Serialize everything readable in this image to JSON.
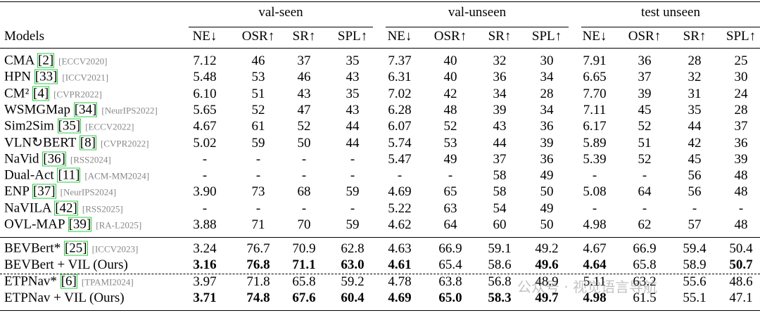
{
  "table": {
    "header": {
      "models": "Models",
      "groups": [
        {
          "label": "val-seen",
          "columns": [
            "NE↓",
            "OSR↑",
            "SR↑",
            "SPL↑"
          ]
        },
        {
          "label": "val-unseen",
          "columns": [
            "NE↓",
            "OSR↑",
            "SR↑",
            "SPL↑"
          ]
        },
        {
          "label": "test unseen",
          "columns": [
            "NE↓",
            "OSR↑",
            "SR↑",
            "SPL↑"
          ]
        }
      ]
    },
    "rows": [
      {
        "name": "CMA",
        "cite": "[2]",
        "venue": "[ECCV2020]",
        "values": [
          "7.12",
          "46",
          "37",
          "35",
          "7.37",
          "40",
          "32",
          "30",
          "7.91",
          "36",
          "28",
          "25"
        ],
        "bold": []
      },
      {
        "name": "HPN",
        "cite": "[33]",
        "venue": "[ICCV2021]",
        "values": [
          "5.48",
          "53",
          "46",
          "43",
          "6.31",
          "40",
          "36",
          "34",
          "6.65",
          "37",
          "32",
          "30"
        ],
        "bold": []
      },
      {
        "name": "CM²",
        "cite": "[4]",
        "venue": "[CVPR2022]",
        "values": [
          "6.10",
          "51",
          "43",
          "35",
          "7.02",
          "42",
          "34",
          "28",
          "7.70",
          "39",
          "31",
          "24"
        ],
        "bold": []
      },
      {
        "name": "WSMGMap",
        "cite": "[34]",
        "venue": "[NeurIPS2022]",
        "values": [
          "5.65",
          "52",
          "47",
          "43",
          "6.28",
          "48",
          "39",
          "34",
          "7.11",
          "45",
          "35",
          "28"
        ],
        "bold": []
      },
      {
        "name": "Sim2Sim",
        "cite": "[35]",
        "venue": "[ECCV2022]",
        "values": [
          "4.67",
          "61",
          "52",
          "44",
          "6.07",
          "52",
          "43",
          "36",
          "6.17",
          "52",
          "44",
          "37"
        ],
        "bold": []
      },
      {
        "name": "VLN↻BERT",
        "cite": "[8]",
        "venue": "[CVPR2022]",
        "values": [
          "5.02",
          "59",
          "50",
          "44",
          "5.74",
          "53",
          "44",
          "39",
          "5.89",
          "51",
          "42",
          "36"
        ],
        "bold": []
      },
      {
        "name": "NaVid",
        "cite": "[36]",
        "venue": "[RSS2024]",
        "values": [
          "-",
          "-",
          "-",
          "-",
          "5.47",
          "49",
          "37",
          "36",
          "5.39",
          "52",
          "45",
          "39"
        ],
        "bold": []
      },
      {
        "name": "Dual-Act",
        "cite": "[11]",
        "venue": "[ACM-MM2024]",
        "values": [
          "-",
          "-",
          "-",
          "-",
          "-",
          "-",
          "58",
          "49",
          "-",
          "-",
          "56",
          "48"
        ],
        "bold": []
      },
      {
        "name": "ENP",
        "cite": "[37]",
        "venue": "[NeurIPS2024]",
        "values": [
          "3.90",
          "73",
          "68",
          "59",
          "4.69",
          "65",
          "58",
          "50",
          "5.08",
          "64",
          "56",
          "48"
        ],
        "bold": []
      },
      {
        "name": "NaVILA",
        "cite": "[42]",
        "venue": "[RSS2025]",
        "values": [
          "-",
          "-",
          "-",
          "-",
          "5.22",
          "63",
          "54",
          "49",
          "-",
          "-",
          "-",
          "-"
        ],
        "bold": []
      },
      {
        "name": "OVL-MAP",
        "cite": "[39]",
        "venue": "[RA-L2025]",
        "values": [
          "3.88",
          "71",
          "70",
          "59",
          "4.62",
          "64",
          "60",
          "50",
          "4.98",
          "62",
          "57",
          "48"
        ],
        "bold": []
      },
      {
        "name": "BEVBert*",
        "cite": "[25]",
        "venue": "[ICCV2023]",
        "values": [
          "3.24",
          "76.7",
          "70.9",
          "62.8",
          "4.63",
          "66.9",
          "59.1",
          "49.2",
          "4.67",
          "66.9",
          "59.4",
          "50.4"
        ],
        "bold": []
      },
      {
        "name": "BEVBert + VIL (Ours)",
        "values": [
          "3.16",
          "76.8",
          "71.1",
          "63.0",
          "4.61",
          "65.4",
          "58.6",
          "49.6",
          "4.64",
          "65.8",
          "58.9",
          "50.7"
        ],
        "bold": [
          0,
          1,
          2,
          3,
          4,
          7,
          8,
          11
        ]
      },
      {
        "name": "ETPNav*",
        "cite": "[6]",
        "venue": "[TPAMI2024]",
        "values": [
          "3.97",
          "71.8",
          "65.8",
          "59.2",
          "4.78",
          "63.8",
          "56.8",
          "48.9",
          "5.11",
          "63.2",
          "55.6",
          "48.6"
        ],
        "bold": []
      },
      {
        "name": "ETPNav + VIL (Ours)",
        "values": [
          "3.71",
          "74.8",
          "67.6",
          "60.4",
          "4.69",
          "65.0",
          "58.3",
          "49.7",
          "4.98",
          "61.5",
          "55.1",
          "47.1"
        ],
        "bold": [
          0,
          1,
          2,
          3,
          4,
          5,
          6,
          7,
          8
        ]
      }
    ]
  },
  "watermark": "公众号 · 视觉语言导航"
}
